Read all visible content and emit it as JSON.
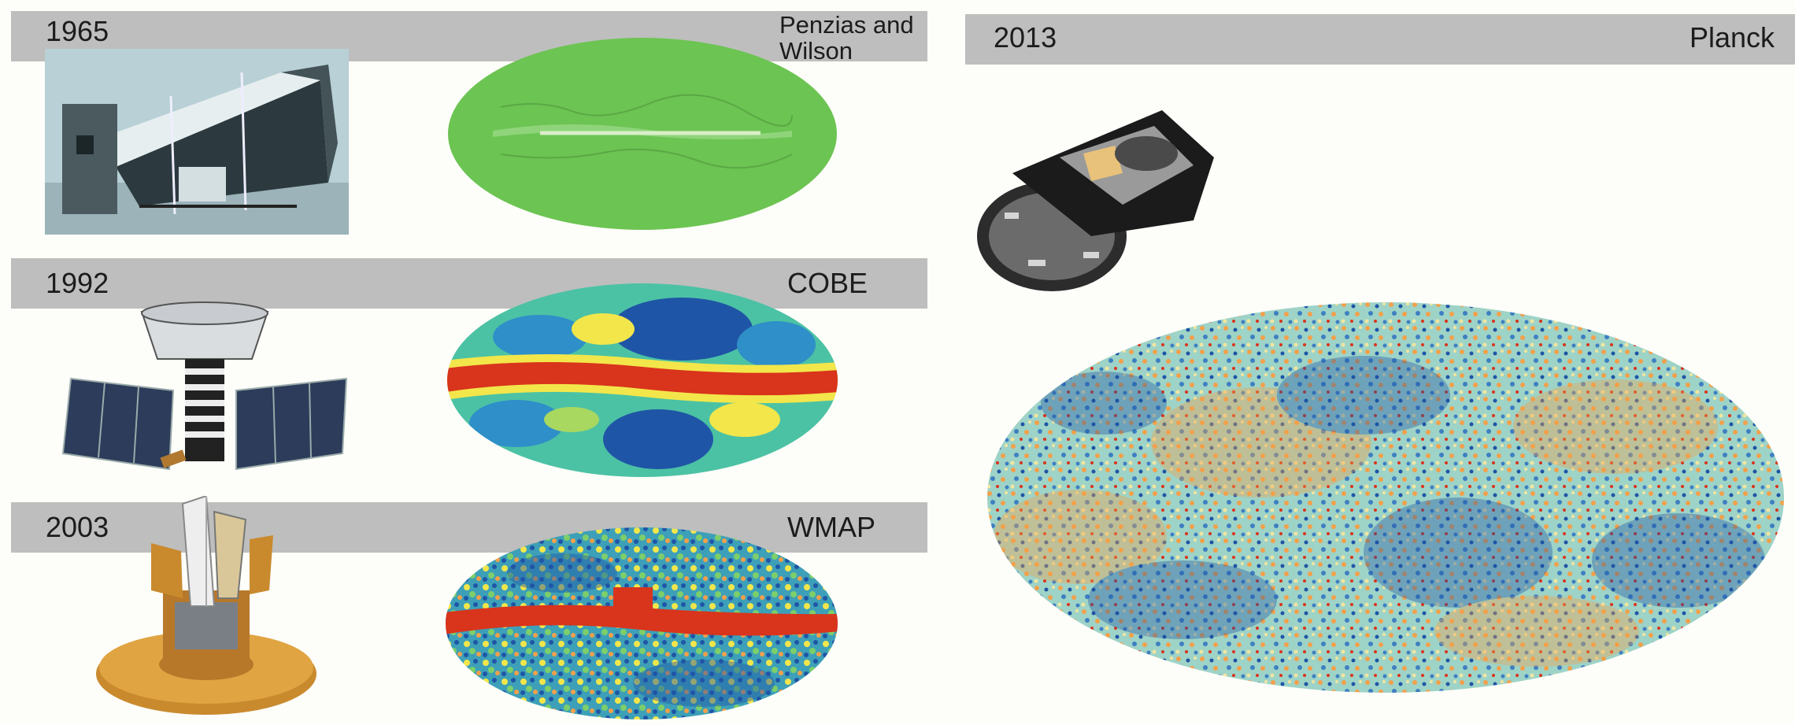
{
  "eras": [
    {
      "year": "1965",
      "mission": "Penzias and Wilson"
    },
    {
      "year": "1992",
      "mission": "COBE"
    },
    {
      "year": "2003",
      "mission": "WMAP"
    },
    {
      "year": "2013",
      "mission": "Planck"
    }
  ],
  "colors": {
    "header_bar": "#bebebe",
    "penzias_map": "#6cc452",
    "cmb_hot": "#d9341c",
    "cmb_warm": "#f3a04a",
    "cmb_mid": "#4cc2a4",
    "cmb_cold": "#1f55a6"
  }
}
